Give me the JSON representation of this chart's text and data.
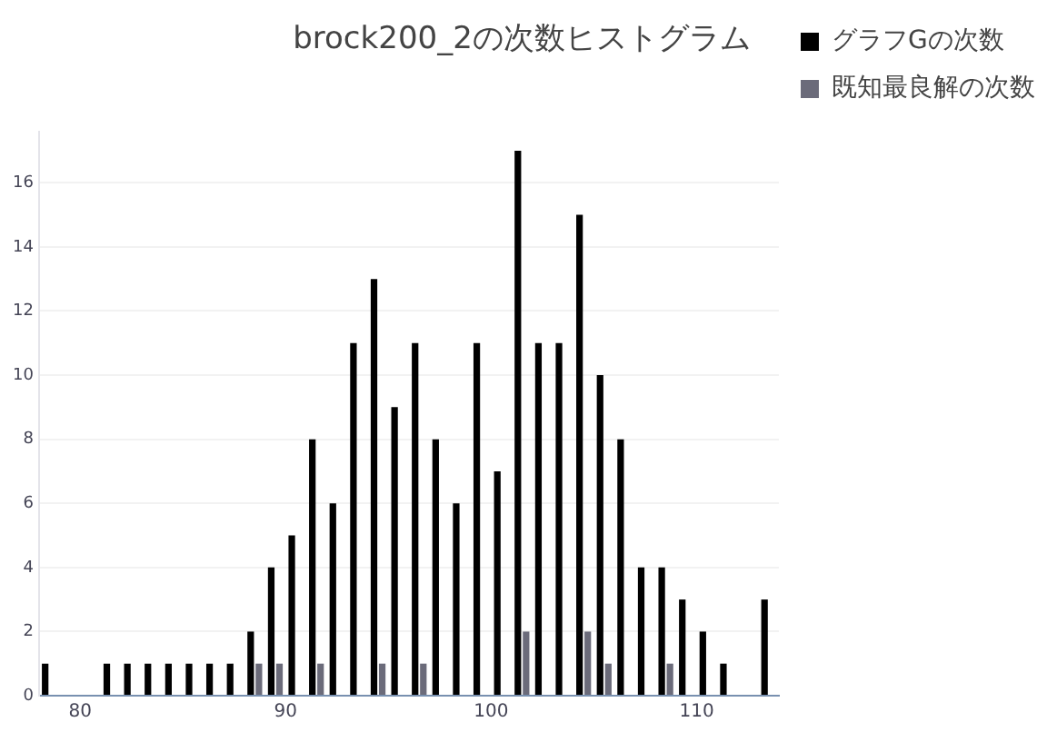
{
  "chart_data": {
    "type": "histogram",
    "title": "brock200_2の次数ヒストグラム",
    "bins": [
      78,
      79,
      80,
      81,
      82,
      83,
      84,
      85,
      86,
      87,
      88,
      89,
      90,
      91,
      92,
      93,
      94,
      95,
      96,
      97,
      98,
      99,
      100,
      101,
      102,
      103,
      104,
      105,
      106,
      107,
      108,
      109,
      110,
      111,
      112,
      113,
      114
    ],
    "series": [
      {
        "name": "グラフGの次数",
        "color": "#000000",
        "values": [
          1,
          0,
          0,
          1,
          1,
          1,
          1,
          1,
          1,
          1,
          2,
          4,
          5,
          8,
          6,
          11,
          13,
          9,
          11,
          8,
          6,
          11,
          7,
          17,
          11,
          11,
          15,
          10,
          8,
          4,
          4,
          3,
          2,
          1,
          0,
          3
        ]
      },
      {
        "name": "既知最良解の次数",
        "color": "#6b6b7a",
        "values": [
          0,
          0,
          0,
          0,
          0,
          0,
          0,
          0,
          0,
          0,
          1,
          1,
          0,
          1,
          0,
          0,
          1,
          0,
          1,
          0,
          0,
          0,
          0,
          2,
          0,
          0,
          2,
          1,
          0,
          0,
          1,
          0,
          0,
          0,
          0,
          0
        ]
      }
    ],
    "xlim": [
      78,
      114
    ],
    "xticks": [
      80,
      90,
      100,
      110
    ],
    "ylim": [
      0,
      17.6
    ],
    "yticks": [
      0,
      2,
      4,
      6,
      8,
      10,
      12,
      14,
      16
    ],
    "grid": "y",
    "legend": "top right"
  }
}
